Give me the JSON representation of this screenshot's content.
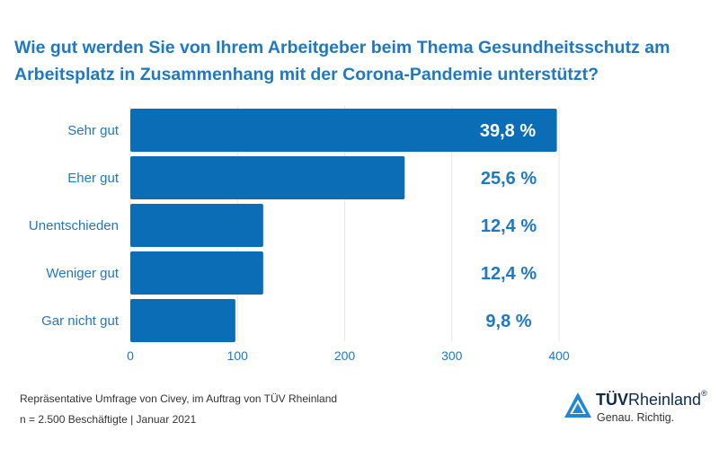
{
  "title": "Wie gut werden Sie von Ihrem Arbeitgeber beim Thema Gesundheitsschutz am Arbeitsplatz in Zusammenhang mit der Corona-Pandemie unterstützt?",
  "chart_data": {
    "type": "bar",
    "orientation": "horizontal",
    "categories": [
      "Sehr gut",
      "Eher gut",
      "Unentschieden",
      "Weniger gut",
      "Gar nicht gut"
    ],
    "values": [
      398,
      256,
      124,
      124,
      98
    ],
    "value_labels": [
      "39,8 %",
      "25,6 %",
      "12,4 %",
      "12,4 %",
      "9,8 %"
    ],
    "xlim": [
      0,
      400
    ],
    "xticks": [
      0,
      100,
      200,
      300,
      400
    ],
    "grid": true,
    "colors": {
      "bar": "#0c6db7",
      "label_inside": "#ffffff",
      "label_outside": "#1e78c2",
      "tick": "#1e78c2"
    }
  },
  "source": {
    "line1": "Repräsentative Umfrage von Civey, im Auftrag von TÜV Rheinland",
    "line2": "n = 2.500 Beschäftigte | Januar 2021"
  },
  "logo": {
    "brand_bold": "TÜV",
    "brand_regular": "Rheinland",
    "registered": "®",
    "claim": "Genau. Richtig.",
    "icon": "triangle-logo-icon"
  }
}
